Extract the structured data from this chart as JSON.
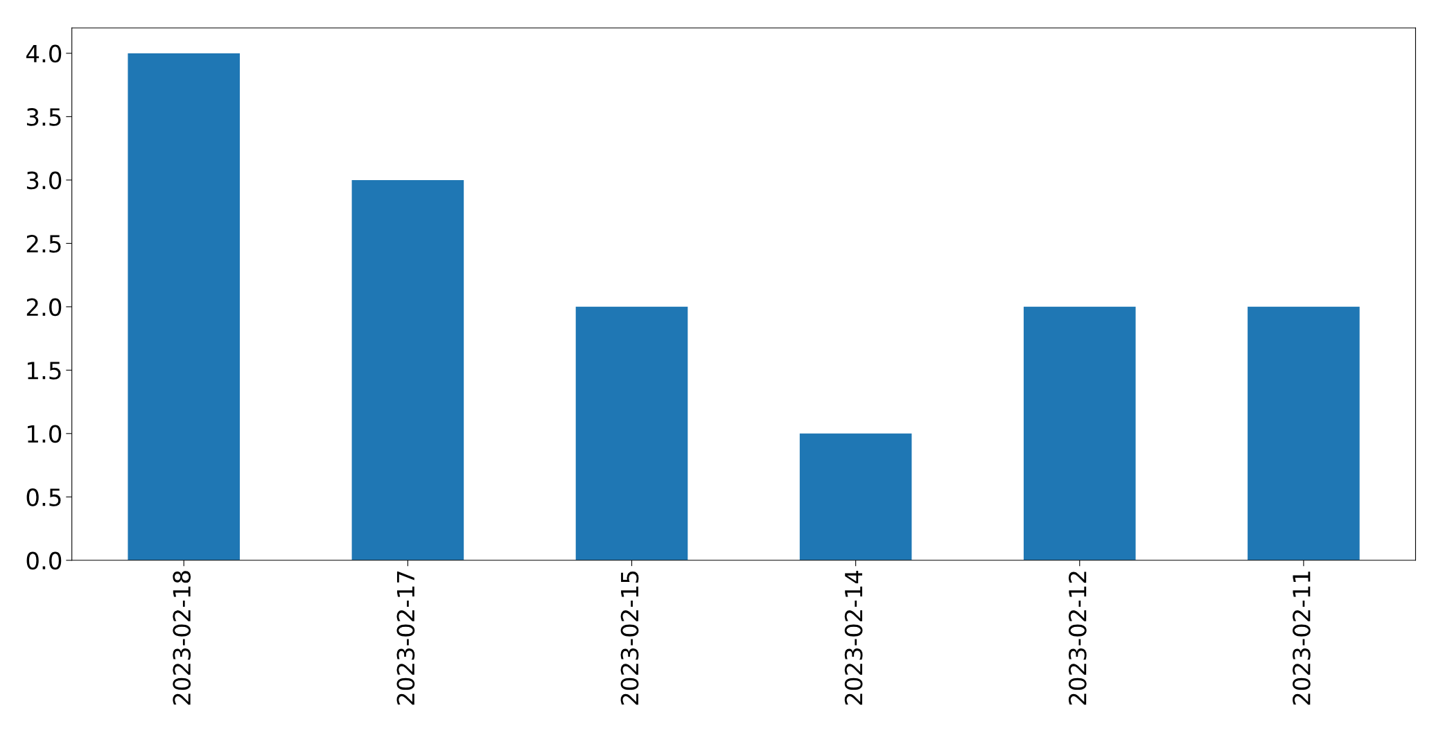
{
  "chart_data": {
    "type": "bar",
    "categories": [
      "2023-02-18",
      "2023-02-17",
      "2023-02-15",
      "2023-02-14",
      "2023-02-12",
      "2023-02-11"
    ],
    "values": [
      4,
      3,
      2,
      1,
      2,
      2
    ],
    "color": "#1f77b4",
    "ylim": [
      0,
      4.2
    ],
    "yticks": [
      {
        "value": 0,
        "label": "0.0"
      },
      {
        "value": 0.5,
        "label": "0.5"
      },
      {
        "value": 1,
        "label": "1.0"
      },
      {
        "value": 1.5,
        "label": "1.5"
      },
      {
        "value": 2,
        "label": "2.0"
      },
      {
        "value": 2.5,
        "label": "2.5"
      },
      {
        "value": 3,
        "label": "3.0"
      },
      {
        "value": 3.5,
        "label": "3.5"
      },
      {
        "value": 4,
        "label": "4.0"
      }
    ],
    "grid": false
  }
}
